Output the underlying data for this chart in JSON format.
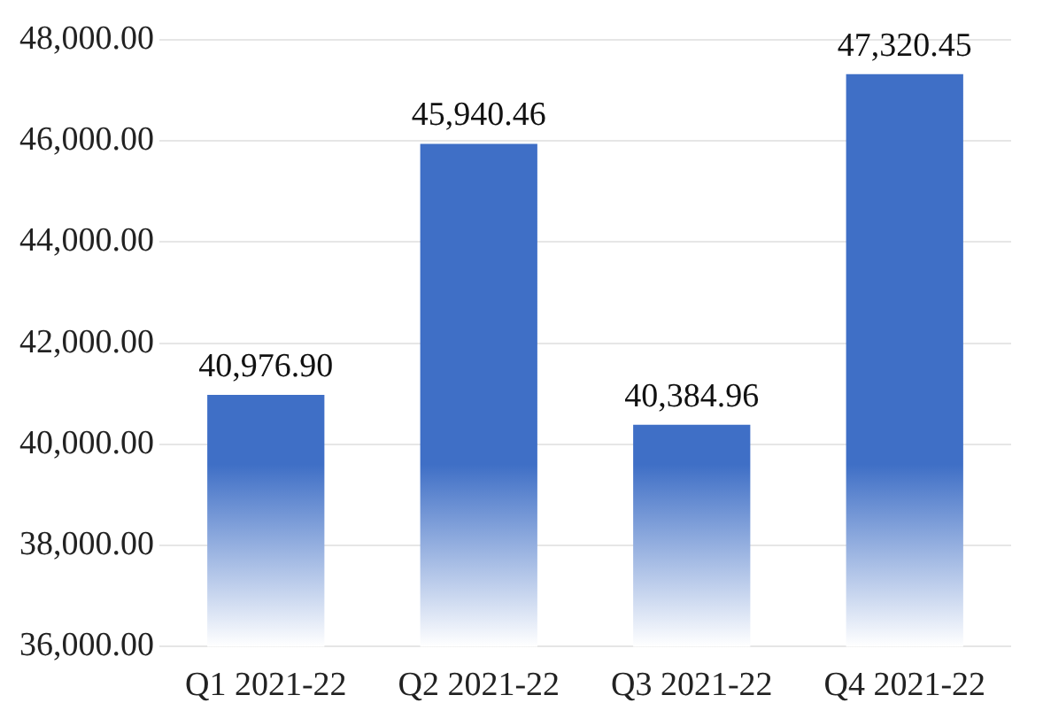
{
  "chart_data": {
    "type": "bar",
    "categories": [
      "Q1 2021-22",
      "Q2 2021-22",
      "Q3 2021-22",
      "Q4 2021-22"
    ],
    "values": [
      40976.9,
      45940.46,
      40384.96,
      47320.45
    ],
    "value_labels": [
      "40,976.90",
      "45,940.46",
      "40,384.96",
      "47,320.45"
    ],
    "color": "#3f6fc6",
    "ylim": [
      36000,
      48000
    ],
    "yticks": [
      {
        "value": 36000,
        "label": "36,000.00"
      },
      {
        "value": 38000,
        "label": "38,000.00"
      },
      {
        "value": 40000,
        "label": "40,000.00"
      },
      {
        "value": 42000,
        "label": "42,000.00"
      },
      {
        "value": 44000,
        "label": "44,000.00"
      },
      {
        "value": 46000,
        "label": "46,000.00"
      },
      {
        "value": 48000,
        "label": "48,000.00"
      }
    ],
    "grid": "y",
    "legend": false
  }
}
